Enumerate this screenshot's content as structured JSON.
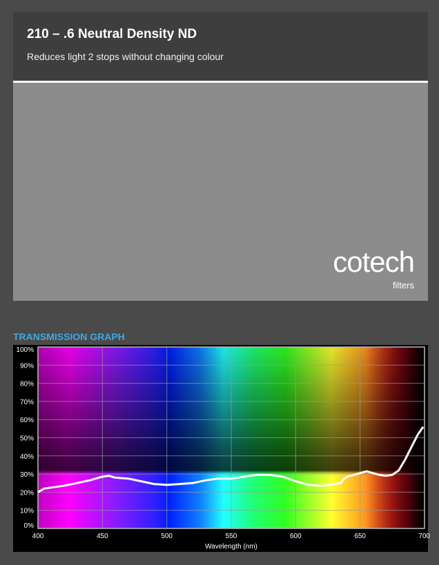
{
  "header": {
    "title": "210 – .6 Neutral Density ND",
    "subtitle": "Reduces light 2 stops without changing colour"
  },
  "swatch": {
    "color": "#8c8c8c"
  },
  "logo": {
    "main": "cotech",
    "sub": "filters"
  },
  "section_title": "TRANSMISSION GRAPH",
  "colors": {
    "accent": "#3fa9e0",
    "background": "#4a4a4a",
    "header": "#3e3e3e"
  },
  "chart_data": {
    "type": "line",
    "title": "",
    "xlabel": "Wavelength (nm)",
    "ylabel": "",
    "xlim": [
      400,
      700
    ],
    "ylim": [
      0,
      100
    ],
    "grid": true,
    "x_ticks": [
      "400",
      "450",
      "500",
      "550",
      "600",
      "650",
      "700"
    ],
    "y_ticks": [
      "0%",
      "10%",
      "20%",
      "30%",
      "40%",
      "50%",
      "60%",
      "70%",
      "80%",
      "90%",
      "100%"
    ],
    "series": [
      {
        "x": [
          400,
          405,
          410,
          420,
          430,
          440,
          450,
          455,
          460,
          470,
          480,
          490,
          500,
          510,
          520,
          530,
          540,
          550,
          560,
          570,
          580,
          590,
          600,
          610,
          620,
          630,
          635,
          637,
          640,
          650,
          655,
          660,
          665,
          670,
          675,
          680,
          685,
          690,
          695,
          699
        ],
        "y": [
          20,
          22,
          22.5,
          23.5,
          25,
          26.5,
          28.5,
          29,
          28,
          27.5,
          26,
          24.5,
          24,
          24.5,
          25,
          26.5,
          27.5,
          27.5,
          28.5,
          29.5,
          29.5,
          28.5,
          26,
          24,
          23.5,
          24.5,
          25,
          27,
          28.5,
          30.5,
          31.5,
          30.5,
          29.5,
          29,
          29.5,
          32,
          38,
          45,
          52,
          56
        ]
      }
    ]
  }
}
